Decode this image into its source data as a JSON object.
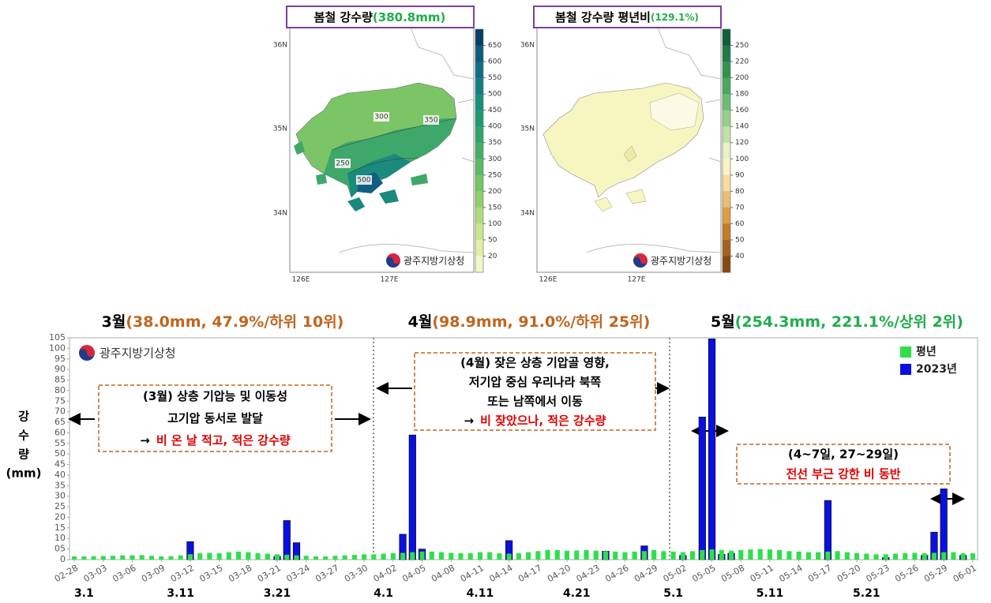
{
  "maps": [
    {
      "title": "봄철 강수량",
      "title_value": "(380.8mm)",
      "lat_labels": [
        "36N",
        "35N",
        "34N"
      ],
      "lon_labels": [
        "126E",
        "127E"
      ],
      "contour_labels": [
        "300",
        "350",
        "250",
        "500"
      ],
      "logo": "광주지방기상청",
      "colorbar": {
        "labels": [
          "650",
          "600",
          "550",
          "500",
          "450",
          "400",
          "350",
          "300",
          "250",
          "200",
          "150",
          "100",
          "50",
          "20"
        ],
        "colors": [
          "#0b3d66",
          "#0d5a7a",
          "#0f6e84",
          "#127f83",
          "#16907a",
          "#1f9a70",
          "#2ea66a",
          "#45b065",
          "#5bba62",
          "#75c465",
          "#92cf6d",
          "#b0da7d",
          "#cbe58f",
          "#e2efa8",
          "#f3f8cc"
        ]
      }
    },
    {
      "title": "봄철 강수량 평년비",
      "title_value": "(129.1%)",
      "lat_labels": [
        "36N",
        "35N",
        "34N"
      ],
      "lon_labels": [
        "126E",
        "127E"
      ],
      "contour_labels": [],
      "logo": "광주지방기상청",
      "colorbar": {
        "labels": [
          "250",
          "220",
          "200",
          "180",
          "160",
          "140",
          "120",
          "100",
          "90",
          "80",
          "70",
          "60",
          "50",
          "40"
        ],
        "colors": [
          "#0f5e38",
          "#1f7a45",
          "#2f934f",
          "#4aa85e",
          "#6dbd71",
          "#96cf88",
          "#c1e1a6",
          "#e9f2c8",
          "#fbf3c2",
          "#f6dca0",
          "#edbd72",
          "#de9b47",
          "#c47a2a",
          "#a65f1c",
          "#884814"
        ]
      }
    }
  ],
  "chart_data": {
    "type": "bar",
    "logo": "광주지방기상청",
    "y_label": [
      "강",
      "수",
      "량",
      "(mm)"
    ],
    "month_headers": [
      {
        "month": "3월",
        "detail": "(38.0mm, 47.9%/하위 10위)",
        "color": "#c0651e"
      },
      {
        "month": "4월",
        "detail": "(98.9mm, 91.0%/하위 25위)",
        "color": "#c0651e"
      },
      {
        "month": "5월",
        "detail": "(254.3mm, 221.1%/상위 2위)",
        "color": "#1fae4b"
      }
    ],
    "period_labels": [
      "3.1",
      "3.11",
      "3.21",
      "4.1",
      "4.11",
      "4.21",
      "5.1",
      "5.11",
      "5.21"
    ],
    "annotations": [
      {
        "lines": [
          [
            {
              "text": "(3월) 상층 기압능 및 이동성"
            }
          ],
          [
            {
              "text": "고기압 동서로 발달"
            }
          ],
          [
            {
              "text": "→"
            },
            {
              "text": "비 온 날 적고, 적은 강수량",
              "color": "#e00000"
            }
          ]
        ]
      },
      {
        "lines": [
          [
            {
              "text": "(4월) 잦은 상층 기압골 영향,"
            }
          ],
          [
            {
              "text": "저기압 중심 우리나라 북쪽"
            }
          ],
          [
            {
              "text": "또는 남쪽에서 이동"
            }
          ],
          [
            {
              "text": "→"
            },
            {
              "text": "비 잦았으나, 적은 강수량",
              "color": "#e00000"
            }
          ]
        ]
      },
      {
        "lines": [
          [
            {
              "text": "(4~7일, 27~29일)"
            }
          ],
          [
            {
              "text": "전선 부근 강한 비 동반",
              "color": "#e00000"
            }
          ]
        ]
      }
    ],
    "categories": [
      "02-28",
      null,
      null,
      "03-03",
      null,
      null,
      "03-06",
      null,
      null,
      "03-09",
      null,
      null,
      "03-12",
      null,
      null,
      "03-15",
      null,
      null,
      "03-18",
      null,
      null,
      "03-21",
      null,
      null,
      "03-24",
      null,
      null,
      "03-27",
      null,
      null,
      "03-30",
      null,
      null,
      "04-02",
      null,
      null,
      "04-05",
      null,
      null,
      "04-08",
      null,
      null,
      "04-11",
      null,
      null,
      "04-14",
      null,
      null,
      "04-17",
      null,
      null,
      "04-20",
      null,
      null,
      "04-23",
      null,
      null,
      "04-26",
      null,
      null,
      "04-29",
      null,
      null,
      "05-02",
      null,
      null,
      "05-05",
      null,
      null,
      "05-08",
      null,
      null,
      "05-11",
      null,
      null,
      "05-14",
      null,
      null,
      "05-17",
      null,
      null,
      "05-20",
      null,
      null,
      "05-23",
      null,
      null,
      "05-26",
      null,
      null,
      "05-29",
      null,
      null,
      "06-01"
    ],
    "series": [
      {
        "name": "평년",
        "color": "#2de04a",
        "values": [
          1.5,
          1.5,
          1.6,
          1.7,
          1.8,
          2,
          2,
          2.1,
          1.8,
          1.5,
          1.6,
          2,
          2.5,
          3,
          3.2,
          3,
          3.5,
          3.8,
          3.5,
          3,
          2.8,
          2.5,
          2.3,
          2,
          1.8,
          1.5,
          1.5,
          1.8,
          2,
          2.2,
          2.5,
          2.5,
          2.8,
          3,
          3.2,
          3.5,
          3.8,
          3.8,
          3.5,
          3.2,
          3,
          3,
          3.5,
          3.5,
          3,
          2.8,
          3,
          3.5,
          4,
          4.5,
          4.5,
          4.2,
          4.3,
          4.5,
          4.2,
          4,
          3.8,
          3.5,
          3.8,
          4,
          4.5,
          4,
          3.8,
          3.5,
          4,
          4.5,
          4.8,
          4.5,
          4.2,
          4.5,
          4.8,
          5,
          4.8,
          4.5,
          4,
          3.8,
          3.5,
          3.5,
          3.8,
          4,
          3.5,
          3,
          2.8,
          2.5,
          2.5,
          2.8,
          3,
          3.2,
          3,
          3.2,
          3.5,
          3.5,
          3,
          3
        ]
      },
      {
        "name": "2023년",
        "color": "#0a10e0",
        "values": [
          0,
          0,
          0,
          0,
          0,
          0,
          0,
          0,
          0,
          0,
          0,
          0,
          8.5,
          0,
          0,
          0,
          0,
          0,
          0,
          0,
          0,
          1.5,
          18.5,
          8,
          0,
          0,
          0,
          0,
          0,
          0,
          0,
          0,
          0,
          0,
          12,
          59,
          5,
          0,
          0,
          0,
          0,
          0,
          0,
          0,
          0,
          9,
          0,
          0,
          0,
          0,
          0,
          0,
          0,
          0,
          0,
          4,
          0,
          0,
          0,
          6.5,
          0,
          0,
          0,
          2,
          0,
          67.5,
          104.5,
          2.5,
          3,
          0,
          0,
          0,
          0,
          0,
          0,
          0,
          0,
          0,
          28,
          0,
          0,
          0,
          0,
          0,
          1,
          0,
          0,
          0,
          2,
          13,
          33.5,
          0,
          2,
          0
        ]
      }
    ],
    "ylim": [
      0,
      105
    ],
    "yticks": [
      0,
      {
        "value": 5,
        "label": "05"
      },
      10,
      15,
      20,
      25,
      30,
      35,
      40,
      45,
      50,
      55,
      60,
      65,
      70,
      75,
      80,
      85,
      90,
      95,
      100,
      105
    ],
    "legend": "upper right"
  }
}
